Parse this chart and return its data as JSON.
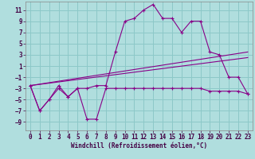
{
  "xlabel": "Windchill (Refroidissement éolien,°C)",
  "background_color": "#b0dede",
  "grid_color": "#8cc8c8",
  "line_color": "#880088",
  "xlim": [
    -0.5,
    23.5
  ],
  "ylim": [
    -10.5,
    12.5
  ],
  "xticks": [
    0,
    1,
    2,
    3,
    4,
    5,
    6,
    7,
    8,
    9,
    10,
    11,
    12,
    13,
    14,
    15,
    16,
    17,
    18,
    19,
    20,
    21,
    22,
    23
  ],
  "yticks": [
    -9,
    -7,
    -5,
    -3,
    -1,
    1,
    3,
    5,
    7,
    9,
    11
  ],
  "hours": [
    0,
    1,
    2,
    3,
    4,
    5,
    6,
    7,
    8,
    9,
    10,
    11,
    12,
    13,
    14,
    15,
    16,
    17,
    18,
    19,
    20,
    21,
    22,
    23
  ],
  "temperature": [
    -2.5,
    -7,
    -5,
    -2.5,
    -4.5,
    -3,
    -3,
    -2.5,
    -2.5,
    3.5,
    9,
    9.5,
    11,
    12,
    9.5,
    9.5,
    7,
    9,
    9,
    3.5,
    3,
    -1,
    -1,
    -4
  ],
  "windchill": [
    -2.5,
    -7,
    -5,
    -3,
    -4.5,
    -3,
    -8.5,
    -8.5,
    -3,
    -3,
    -3,
    -3,
    -3,
    -3,
    -3,
    -3,
    -3,
    -3,
    -3,
    -3.5,
    -3.5,
    -3.5,
    -3.5,
    -4
  ],
  "trend1": [
    -2.5,
    3.5
  ],
  "trend2": [
    -2.5,
    2.5
  ],
  "xlabel_fontsize": 5.5,
  "tick_fontsize": 5.5
}
